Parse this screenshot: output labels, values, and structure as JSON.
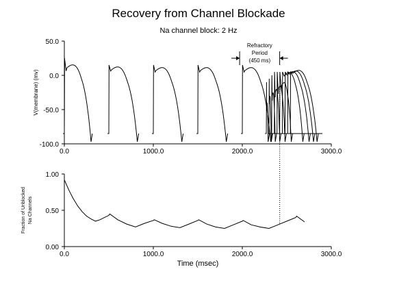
{
  "title": "Recovery from Channel Blockade",
  "subtitle": "Na channel block: 2 Hz",
  "chart_data": [
    {
      "type": "line",
      "name": "membrane-potential",
      "ylabel": "V(membrane) (mv)",
      "xlabel": "",
      "xlim": [
        0,
        3000
      ],
      "ylim": [
        -100,
        50
      ],
      "xticks": [
        "0.0",
        "1000.0",
        "2000.0",
        "3000.0"
      ],
      "yticks": [
        "-100.0",
        "-50.0",
        "0.0",
        "50.0"
      ],
      "annotation": {
        "lines": [
          "Refractory",
          "Period",
          "(450 ms)"
        ],
        "x_from": 1970,
        "x_to": 2420,
        "y": 15
      },
      "beats": [
        {
          "start": 0,
          "peak": 25,
          "dome": 16,
          "duration": 300
        },
        {
          "start": 500,
          "peak": 15,
          "dome": 13,
          "duration": 320
        },
        {
          "start": 1000,
          "peak": 15,
          "dome": 12,
          "duration": 320
        },
        {
          "start": 1500,
          "peak": 15,
          "dome": 12,
          "duration": 320
        },
        {
          "start": 2000,
          "peak": 15,
          "dome": 12,
          "duration": 320
        }
      ],
      "test_stimuli": [
        {
          "start": 2270,
          "peak": -10,
          "dome": -40,
          "duration": 20
        },
        {
          "start": 2300,
          "peak": -5,
          "dome": -30,
          "duration": 25
        },
        {
          "start": 2330,
          "peak": 0,
          "dome": -25,
          "duration": 40
        },
        {
          "start": 2360,
          "peak": 5,
          "dome": -20,
          "duration": 60
        },
        {
          "start": 2390,
          "peak": 5,
          "dome": -15,
          "duration": 90
        },
        {
          "start": 2420,
          "peak": 5,
          "dome": -10,
          "duration": 130
        },
        {
          "start": 2450,
          "peak": 5,
          "dome": 5,
          "duration": 230
        },
        {
          "start": 2480,
          "peak": 5,
          "dome": 6,
          "duration": 270
        },
        {
          "start": 2510,
          "peak": 5,
          "dome": 7,
          "duration": 290
        },
        {
          "start": 2540,
          "peak": 5,
          "dome": 8,
          "duration": 300
        }
      ],
      "trace_end": 2900,
      "rest": -85
    },
    {
      "type": "line",
      "name": "unblocked-fraction",
      "ylabel": "Fraction of Unblocked Na Channels",
      "xlabel": "Time (msec)",
      "xlim": [
        0,
        3000
      ],
      "ylim": [
        0,
        1
      ],
      "xticks": [
        "0.0",
        "1000.0",
        "2000.0",
        "3000.0"
      ],
      "yticks": [
        "0.00",
        "0.50",
        "1.00"
      ],
      "x": [
        0,
        50,
        100,
        150,
        200,
        250,
        300,
        350,
        400,
        450,
        500,
        510,
        600,
        700,
        800,
        900,
        1000,
        1010,
        1100,
        1200,
        1300,
        1400,
        1500,
        1510,
        1600,
        1700,
        1800,
        1900,
        2000,
        2010,
        2100,
        2200,
        2300,
        2400,
        2500,
        2600,
        2610,
        2700
      ],
      "y": [
        0.92,
        0.78,
        0.66,
        0.56,
        0.48,
        0.42,
        0.38,
        0.35,
        0.37,
        0.4,
        0.43,
        0.45,
        0.37,
        0.31,
        0.27,
        0.32,
        0.36,
        0.37,
        0.32,
        0.28,
        0.26,
        0.31,
        0.36,
        0.37,
        0.31,
        0.27,
        0.25,
        0.3,
        0.35,
        0.36,
        0.3,
        0.27,
        0.25,
        0.3,
        0.35,
        0.4,
        0.42,
        0.34
      ]
    }
  ],
  "marker_time": 2420
}
